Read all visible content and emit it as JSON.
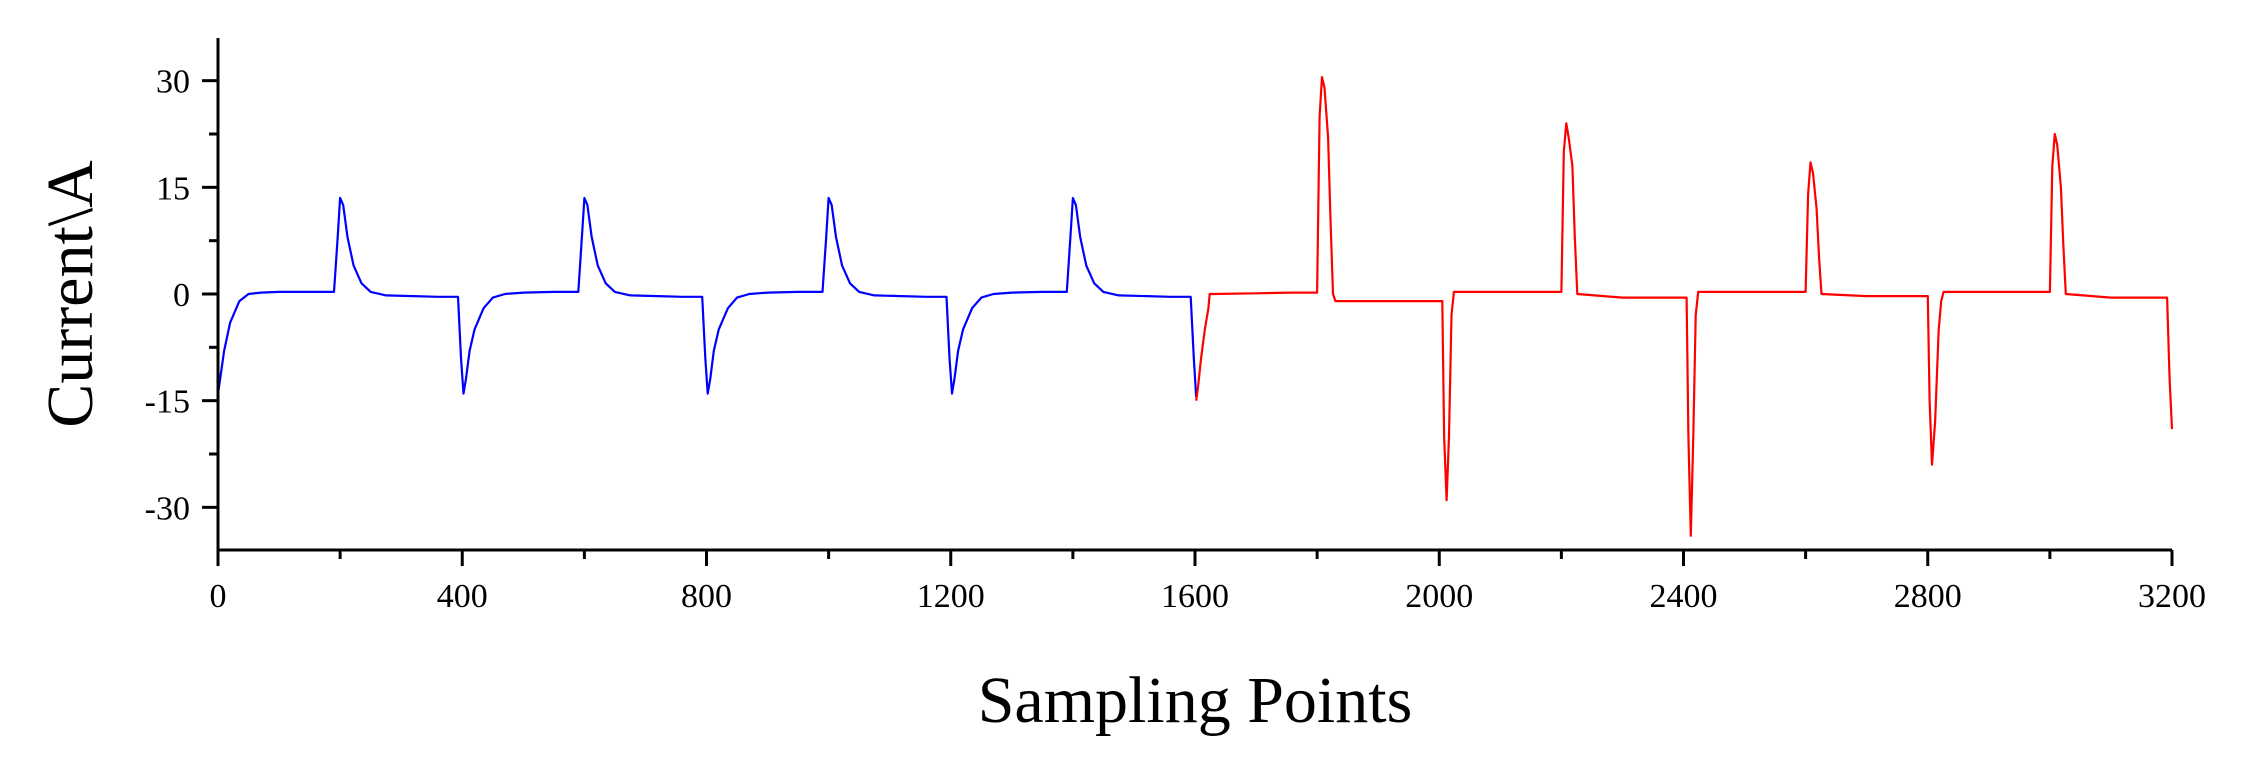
{
  "chart_data": {
    "type": "line",
    "title": "",
    "xlabel": "Sampling Points",
    "ylabel": "Current\\A",
    "xlim": [
      0,
      3200
    ],
    "ylim": [
      -36,
      36
    ],
    "x_ticks": [
      0,
      400,
      800,
      1200,
      1600,
      2000,
      2400,
      2800,
      3200
    ],
    "x_tick_labels": [
      "0",
      "400",
      "800",
      "1200",
      "1600",
      "2000",
      "2400",
      "2800",
      "3200"
    ],
    "y_ticks": [
      30,
      15,
      0,
      -15,
      -30
    ],
    "y_tick_labels": [
      "30",
      "15",
      "0",
      "-15",
      "-30"
    ],
    "y_minor_ticks": [
      22.5,
      7.5,
      -7.5,
      -22.5
    ],
    "x_minor_ticks": [
      200,
      600,
      1000,
      1400,
      1800,
      2200,
      2600,
      3000
    ],
    "grid": false,
    "legend": "none",
    "series": [
      {
        "color": "#0000ff",
        "x": [
          0,
          5,
          10,
          20,
          35,
          50,
          70,
          100,
          150,
          190,
          196,
          200,
          205,
          212,
          222,
          235,
          250,
          275,
          320,
          360,
          393,
          398,
          402,
          406,
          412,
          420,
          435,
          450,
          470,
          500,
          550,
          590,
          596,
          600,
          605,
          612,
          622,
          635,
          650,
          675,
          720,
          760,
          793,
          798,
          802,
          806,
          812,
          820,
          835,
          850,
          870,
          900,
          950,
          990,
          996,
          1000,
          1005,
          1012,
          1022,
          1035,
          1050,
          1075,
          1120,
          1160,
          1193,
          1198,
          1202,
          1206,
          1212,
          1220,
          1235,
          1250,
          1270,
          1300,
          1350,
          1390,
          1396,
          1400,
          1405,
          1412,
          1422,
          1435,
          1450,
          1475,
          1520,
          1560,
          1593,
          1598,
          1602
        ],
        "y": [
          -14,
          -11,
          -8,
          -4,
          -1,
          0,
          0.2,
          0.3,
          0.3,
          0.3,
          8,
          13.5,
          12.5,
          8,
          4,
          1.5,
          0.3,
          -0.2,
          -0.3,
          -0.4,
          -0.4,
          -9,
          -14,
          -12,
          -8,
          -5,
          -2,
          -0.5,
          0,
          0.2,
          0.3,
          0.3,
          8,
          13.5,
          12.5,
          8,
          4,
          1.5,
          0.3,
          -0.2,
          -0.3,
          -0.4,
          -0.4,
          -9,
          -14,
          -12,
          -8,
          -5,
          -2,
          -0.5,
          0,
          0.2,
          0.3,
          0.3,
          8,
          13.5,
          12.5,
          8,
          4,
          1.5,
          0.3,
          -0.2,
          -0.3,
          -0.4,
          -0.4,
          -9,
          -14,
          -12,
          -8,
          -5,
          -2,
          -0.5,
          0,
          0.2,
          0.3,
          0.3,
          8,
          13.5,
          12.5,
          8,
          4,
          1.5,
          0.3,
          -0.2,
          -0.3,
          -0.4,
          -0.4,
          -9,
          -14.5
        ]
      },
      {
        "color": "#ff0000",
        "x": [
          1602,
          1605,
          1610,
          1616,
          1622,
          1624,
          1630,
          1700,
          1760,
          1800,
          1804,
          1808,
          1812,
          1818,
          1822,
          1826,
          1830,
          1900,
          1990,
          2005,
          2008,
          2012,
          2016,
          2020,
          2024,
          2100,
          2190,
          2200,
          2204,
          2208,
          2212,
          2218,
          2222,
          2226,
          2300,
          2390,
          2405,
          2408,
          2412,
          2416,
          2420,
          2424,
          2500,
          2590,
          2600,
          2604,
          2608,
          2612,
          2618,
          2622,
          2626,
          2700,
          2790,
          2800,
          2803,
          2807,
          2812,
          2818,
          2822,
          2826,
          2900,
          2990,
          3000,
          3004,
          3008,
          3012,
          3018,
          3022,
          3026,
          3100,
          3180,
          3192,
          3196,
          3200
        ],
        "y": [
          -15,
          -13,
          -9,
          -5,
          -2,
          0,
          0,
          0.1,
          0.2,
          0.2,
          25,
          30.5,
          29,
          22,
          10,
          0,
          -1,
          -1,
          -1,
          -1,
          -20,
          -29,
          -20,
          -3,
          0.3,
          0.3,
          0.3,
          0.3,
          20,
          24,
          22,
          18,
          8,
          0,
          -0.5,
          -0.5,
          -0.5,
          -20,
          -34,
          -20,
          -3,
          0.3,
          0.3,
          0.3,
          0.3,
          14,
          18.5,
          17,
          12,
          5,
          0,
          -0.3,
          -0.3,
          -0.3,
          -15,
          -24,
          -18,
          -5,
          -1,
          0.3,
          0.3,
          0.3,
          0.3,
          18,
          22.5,
          21,
          15,
          7,
          0,
          -0.5,
          -0.5,
          -0.5,
          -12,
          -19
        ]
      }
    ]
  }
}
